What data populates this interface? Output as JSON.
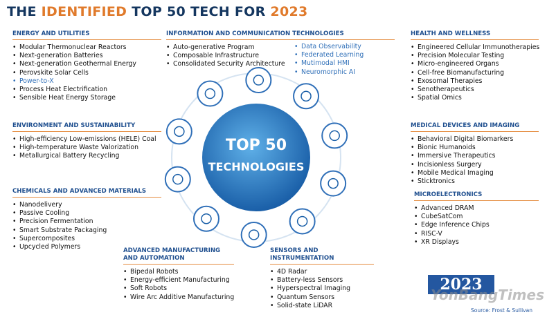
{
  "header": {
    "title_parts": [
      "THE ",
      "IDENTIFIED",
      " TOP 50 TECH FOR ",
      "2023"
    ]
  },
  "center": {
    "line1": "TOP 50",
    "line2": "TECHNOLOGIES"
  },
  "sections": [
    {
      "title": "ENERGY AND UTILITIES",
      "items": [
        "Modular Thermonuclear Reactors",
        "Next-generation Batteries",
        "Next-generation Geothermal Energy",
        "Perovskite Solar Cells",
        "Power-to-X",
        "Process Heat Electrification",
        "Sensible Heat Energy Storage"
      ]
    },
    {
      "title": "INFORMATION AND COMMUNICATION TECHNOLOGIES",
      "items": [
        "Auto-generative Program",
        "Composable Infrastructure",
        "Consolidated Security Architecture"
      ],
      "items_col2": [
        "Data Observability",
        "Federated Learning",
        "Mutimodal HMI",
        "Neuromorphic AI"
      ]
    },
    {
      "title": "HEALTH AND WELLNESS",
      "items": [
        "Engineered Cellular Immunotherapies",
        "Precision Molecular Testing",
        "Micro-engineered Organs",
        "Cell-free Biomanufacturing",
        "Exosomal Therapies",
        "Senotherapeutics",
        "Spatial Omics"
      ]
    },
    {
      "title": "ENVIRONMENT AND SUSTAINABILITY",
      "items": [
        "High-efficiency Low-emissions (HELE) Coal",
        "High-temperature Waste Valorization",
        "Metallurgical Battery Recycling"
      ]
    },
    {
      "title": "CHEMICALS AND ADVANCED MATERIALS",
      "items": [
        "Nanodelivery",
        "Passive Cooling",
        "Precision Fermentation",
        "Smart Substrate Packaging",
        "Supercomposites",
        "Upcycled Polymers"
      ]
    },
    {
      "title": "MEDICAL DEVICES AND IMAGING",
      "items": [
        "Behavioral Digital Biomarkers",
        "Bionic Humanoids",
        "Immersive Therapeutics",
        "Incisionless Surgery",
        "Mobile Medical Imaging",
        "Sticktronics"
      ]
    },
    {
      "title": "MICROELECTRONICS",
      "items": [
        "Advanced DRAM",
        "CubeSatCom",
        "Edge Inference Chips",
        "RISC-V",
        "XR Displays"
      ]
    },
    {
      "title": "ADVANCED MANUFACTURING AND AUTOMATION",
      "items": [
        "Bipedal Robots",
        "Energy-efficient Manufacturing",
        "Soft Robots",
        "Wire Arc Additive Manufacturing"
      ]
    },
    {
      "title": "SENSORS AND INSTRUMENTATION",
      "items": [
        "4D Radar",
        "Battery-less Sensors",
        "Hyperspectral Imaging",
        "Quantum Sensors",
        "Solid-state LiDAR"
      ]
    }
  ],
  "badge": "2023",
  "watermark": "YonBangTimes",
  "source": "Source: Frost & Sullivan"
}
